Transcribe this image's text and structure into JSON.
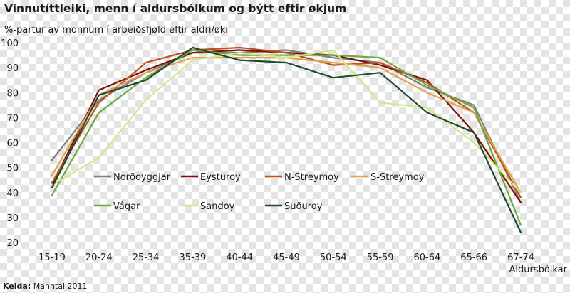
{
  "chart_data": {
    "type": "line",
    "title": "Vinnutíttleiki, menn í aldursbólkum og býtt eftir økjum",
    "ylabel": "%-partur av monnum í arbeiðsfjøld eftir aldri/øki",
    "xlabel": "Aldursbólkar",
    "ylim": [
      20,
      100
    ],
    "yticks": [
      20,
      30,
      40,
      50,
      60,
      70,
      80,
      90,
      100
    ],
    "grid": false,
    "legend_position": "center-left",
    "categories": [
      "15-19",
      "20-24",
      "25-34",
      "35-39",
      "40-44",
      "45-49",
      "50-54",
      "55-59",
      "60-64",
      "65-66",
      "67-74"
    ],
    "series": [
      {
        "name": "Norðoyggjar",
        "color": "#7f7f7f",
        "values": [
          53,
          77,
          88,
          96,
          96,
          97,
          94,
          92,
          82,
          75,
          36
        ]
      },
      {
        "name": "Eysturoy",
        "color": "#7b1010",
        "values": [
          43,
          81,
          89,
          96,
          97,
          96,
          95,
          91,
          85,
          64,
          36
        ]
      },
      {
        "name": "N-Streymoy",
        "color": "#c0501a",
        "values": [
          44,
          76,
          92,
          97,
          98,
          96,
          91,
          92,
          84,
          72,
          38
        ]
      },
      {
        "name": "S-Streymoy",
        "color": "#e0a24a",
        "values": [
          47,
          79,
          88,
          94,
          94,
          94,
          92,
          90,
          80,
          72,
          40
        ]
      },
      {
        "name": "Vágar",
        "color": "#6aaa40",
        "values": [
          39,
          72,
          86,
          97,
          95,
          95,
          95,
          94,
          83,
          74,
          27
        ]
      },
      {
        "name": "Sandoy",
        "color": "#d4e88a",
        "values": [
          43,
          54,
          77,
          93,
          96,
          94,
          97,
          76,
          74,
          60,
          40
        ]
      },
      {
        "name": "Suðuroy",
        "color": "#1f4a2e",
        "values": [
          42,
          79,
          85,
          98,
          93,
          92,
          86,
          88,
          72,
          64,
          24
        ]
      }
    ]
  },
  "source": {
    "label": "Kelda:",
    "text": "Manntal 2011"
  }
}
